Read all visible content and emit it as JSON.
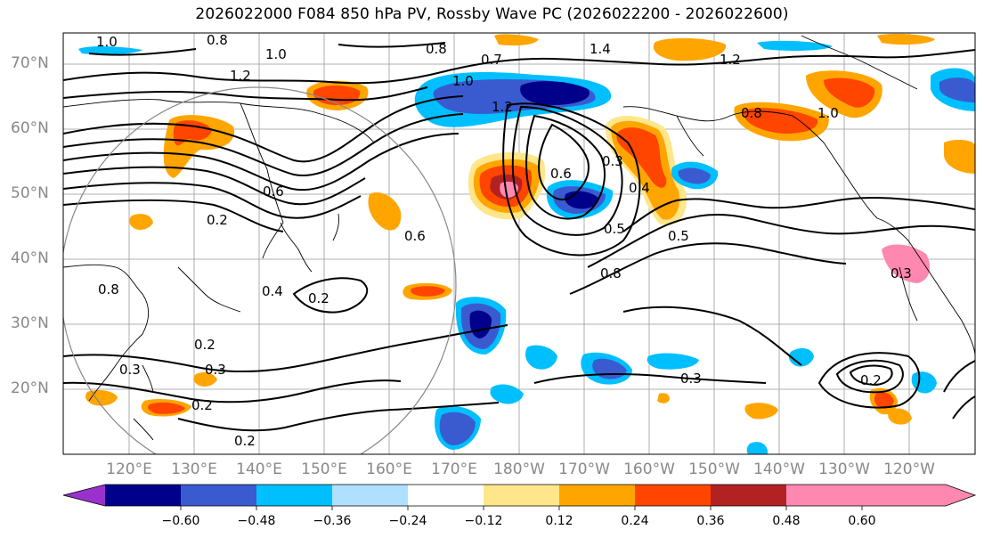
{
  "title": "2026022000 F084 850 hPa PV, Rossby Wave PC (2026022200 - 2026022600)",
  "lat_labels": [
    "70°N",
    "60°N",
    "50°N",
    "40°N",
    "30°N",
    "20°N"
  ],
  "lon_labels": [
    "120°E",
    "130°E",
    "140°E",
    "150°E",
    "160°E",
    "170°E",
    "180°W",
    "170°W",
    "160°W",
    "150°W",
    "140°W",
    "130°W",
    "120°W"
  ],
  "colorbar": {
    "ticks": [
      "−0.60",
      "−0.48",
      "−0.36",
      "−0.24",
      "−0.12",
      "0.12",
      "0.24",
      "0.36",
      "0.48",
      "0.60"
    ],
    "colors": [
      "#9932cc",
      "#00008b",
      "#3a5bd0",
      "#00bfff",
      "#b0e0ff",
      "#ffffff",
      "#ffe68a",
      "#ffa500",
      "#ff4500",
      "#b22222",
      "#ff88b0"
    ]
  },
  "contour_labels": [
    "1.0",
    "0.8",
    "1.0",
    "1.2",
    "0.8",
    "0.7",
    "1.0",
    "1.2",
    "1.4",
    "1.2",
    "1.0",
    "0.8",
    "0.6",
    "0.3",
    "0.5",
    "0.4",
    "0.5",
    "0.8",
    "0.6",
    "0.2",
    "0.2",
    "0.2",
    "0.3",
    "0.2",
    "0.3",
    "0.2",
    "0.3",
    "0.6",
    "0.2",
    "0.3",
    "0.8",
    "0.4"
  ]
}
